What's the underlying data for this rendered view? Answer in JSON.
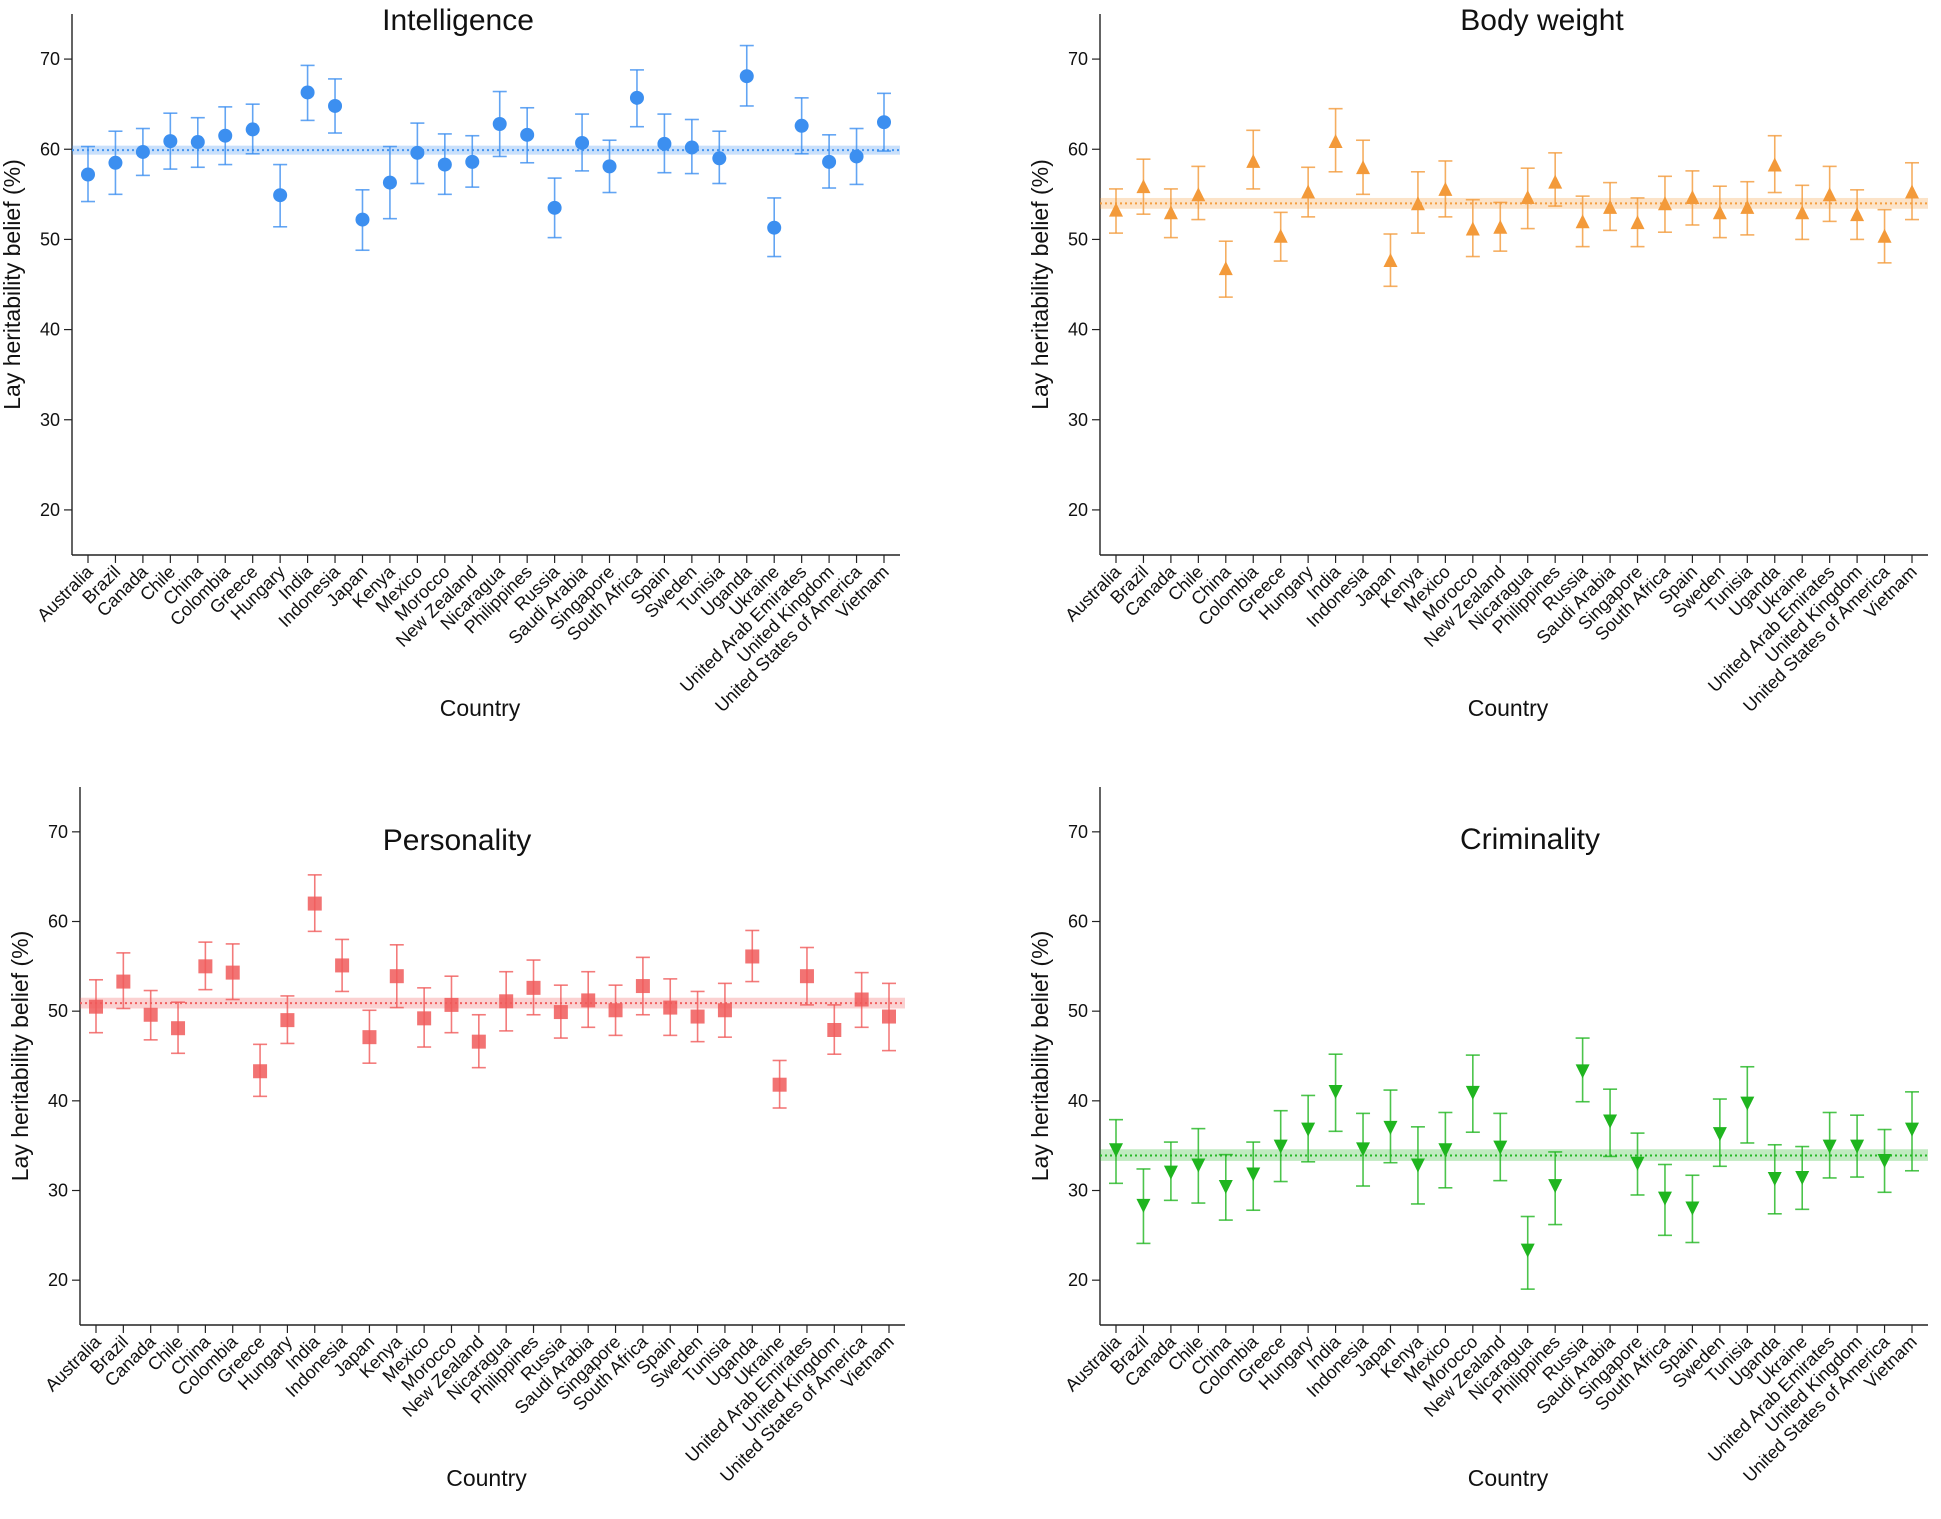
{
  "chart_data": [
    {
      "type": "scatter",
      "title": "Intelligence",
      "xlabel": "Country",
      "ylabel": "Lay heritability belief (%)",
      "ylim": [
        15,
        75
      ],
      "yticks": [
        "20",
        "30",
        "40",
        "50",
        "60",
        "70"
      ],
      "color": "#3c8ff0",
      "marker": "circle",
      "reference": {
        "mean": 59.9,
        "lower": 59.4,
        "upper": 60.4
      },
      "categories": [
        "Australia",
        "Brazil",
        "Canada",
        "Chile",
        "China",
        "Colombia",
        "Greece",
        "Hungary",
        "India",
        "Indonesia",
        "Japan",
        "Kenya",
        "Mexico",
        "Morocco",
        "New Zealand",
        "Nicaragua",
        "Philippines",
        "Russia",
        "Saudi Arabia",
        "Singapore",
        "South Africa",
        "Spain",
        "Sweden",
        "Tunisia",
        "Uganda",
        "Ukraine",
        "United Arab Emirates",
        "United Kingdom",
        "United States of America",
        "Vietnam"
      ],
      "series": [
        {
          "values": [
            57.2,
            58.5,
            59.7,
            60.9,
            60.8,
            61.5,
            62.2,
            54.9,
            66.3,
            64.8,
            52.2,
            56.3,
            59.6,
            58.3,
            58.6,
            62.8,
            61.6,
            53.5,
            60.7,
            58.1,
            65.7,
            60.6,
            60.2,
            59.0,
            68.1,
            51.3,
            62.6,
            58.6,
            59.2,
            63.0
          ],
          "lower": [
            54.2,
            55.0,
            57.1,
            57.8,
            58.0,
            58.3,
            59.5,
            51.4,
            63.2,
            61.8,
            48.8,
            52.3,
            56.2,
            55.0,
            55.8,
            59.2,
            58.5,
            50.2,
            57.6,
            55.2,
            62.5,
            57.4,
            57.3,
            56.2,
            64.8,
            48.1,
            59.5,
            55.7,
            56.1,
            59.8
          ],
          "upper": [
            60.3,
            62.0,
            62.3,
            64.0,
            63.5,
            64.7,
            65.0,
            58.3,
            69.3,
            67.8,
            55.5,
            60.3,
            62.9,
            61.7,
            61.5,
            66.4,
            64.6,
            56.8,
            63.9,
            61.0,
            68.8,
            63.9,
            63.3,
            62.0,
            71.5,
            54.6,
            65.7,
            61.6,
            62.3,
            66.2
          ]
        }
      ]
    },
    {
      "type": "scatter",
      "title": "Body weight",
      "xlabel": "Country",
      "ylabel": "Lay heritability belief (%)",
      "ylim": [
        15,
        75
      ],
      "yticks": [
        "20",
        "30",
        "40",
        "50",
        "60",
        "70"
      ],
      "color": "#f39a3a",
      "marker": "triangle-up",
      "reference": {
        "mean": 54.0,
        "lower": 53.4,
        "upper": 54.6
      },
      "categories": [
        "Australia",
        "Brazil",
        "Canada",
        "Chile",
        "China",
        "Colombia",
        "Greece",
        "Hungary",
        "India",
        "Indonesia",
        "Japan",
        "Kenya",
        "Mexico",
        "Morocco",
        "New Zealand",
        "Nicaragua",
        "Philippines",
        "Russia",
        "Saudi Arabia",
        "Singapore",
        "South Africa",
        "Spain",
        "Sweden",
        "Tunisia",
        "Uganda",
        "Ukraine",
        "United Arab Emirates",
        "United Kingdom",
        "United States of America",
        "Vietnam"
      ],
      "series": [
        {
          "values": [
            53.2,
            55.8,
            52.9,
            54.9,
            46.7,
            58.6,
            50.3,
            55.2,
            60.8,
            57.9,
            47.6,
            53.9,
            55.5,
            51.1,
            51.3,
            54.6,
            56.3,
            51.9,
            53.5,
            51.8,
            53.9,
            54.6,
            52.9,
            53.5,
            58.2,
            52.9,
            54.9,
            52.7,
            50.3,
            55.2
          ],
          "lower": [
            50.7,
            52.8,
            50.2,
            52.2,
            43.6,
            55.6,
            47.6,
            52.5,
            57.5,
            55.0,
            44.8,
            50.7,
            52.5,
            48.1,
            48.7,
            51.2,
            53.7,
            49.2,
            51.0,
            49.2,
            50.8,
            51.6,
            50.2,
            50.5,
            55.2,
            50.0,
            52.0,
            50.0,
            47.4,
            52.2
          ],
          "upper": [
            55.6,
            58.9,
            55.6,
            58.1,
            49.8,
            62.1,
            53.0,
            58.0,
            64.5,
            61.0,
            50.6,
            57.5,
            58.7,
            54.4,
            54.1,
            57.9,
            59.6,
            54.8,
            56.3,
            54.6,
            57.0,
            57.6,
            55.9,
            56.4,
            61.5,
            56.0,
            58.1,
            55.5,
            53.3,
            58.5
          ]
        }
      ]
    },
    {
      "type": "scatter",
      "title": "Personality",
      "xlabel": "Country",
      "ylabel": "Lay heritability belief (%)",
      "ylim": [
        15,
        75
      ],
      "yticks": [
        "20",
        "30",
        "40",
        "50",
        "60",
        "70"
      ],
      "color": "#f05a5a",
      "marker": "square",
      "reference": {
        "mean": 50.9,
        "lower": 50.3,
        "upper": 51.5
      },
      "categories": [
        "Australia",
        "Brazil",
        "Canada",
        "Chile",
        "China",
        "Colombia",
        "Greece",
        "Hungary",
        "India",
        "Indonesia",
        "Japan",
        "Kenya",
        "Mexico",
        "Morocco",
        "New Zealand",
        "Nicaragua",
        "Philippines",
        "Russia",
        "Saudi Arabia",
        "Singapore",
        "South Africa",
        "Spain",
        "Sweden",
        "Tunisia",
        "Uganda",
        "Ukraine",
        "United Arab Emirates",
        "United Kingdom",
        "United States of America",
        "Vietnam"
      ],
      "series": [
        {
          "values": [
            50.5,
            53.3,
            49.6,
            48.1,
            55.0,
            54.3,
            43.3,
            49.0,
            62.0,
            55.1,
            47.1,
            53.9,
            49.2,
            50.7,
            46.6,
            51.1,
            52.6,
            49.9,
            51.2,
            50.1,
            52.8,
            50.4,
            49.4,
            50.1,
            56.1,
            41.8,
            53.9,
            47.9,
            51.3,
            49.4
          ],
          "lower": [
            47.6,
            50.3,
            46.8,
            45.3,
            52.4,
            51.3,
            40.5,
            46.4,
            58.9,
            52.2,
            44.2,
            50.4,
            46.0,
            47.6,
            43.7,
            47.8,
            49.6,
            47.0,
            48.2,
            47.3,
            49.6,
            47.3,
            46.6,
            47.1,
            53.3,
            39.2,
            50.7,
            45.2,
            48.2,
            45.6
          ],
          "upper": [
            53.5,
            56.5,
            52.3,
            51.0,
            57.7,
            57.5,
            46.3,
            51.7,
            65.2,
            58.0,
            50.1,
            57.4,
            52.6,
            53.9,
            49.6,
            54.4,
            55.7,
            52.9,
            54.4,
            52.9,
            56.0,
            53.6,
            52.2,
            53.1,
            59.0,
            44.5,
            57.1,
            50.7,
            54.3,
            53.1
          ]
        }
      ]
    },
    {
      "type": "scatter",
      "title": "Criminality",
      "xlabel": "Country",
      "ylabel": "Lay heritability belief (%)",
      "ylim": [
        15,
        75
      ],
      "yticks": [
        "20",
        "30",
        "40",
        "50",
        "60",
        "70"
      ],
      "color": "#1fb51f",
      "marker": "triangle-down",
      "reference": {
        "mean": 33.9,
        "lower": 33.3,
        "upper": 34.6
      },
      "categories": [
        "Australia",
        "Brazil",
        "Canada",
        "Chile",
        "China",
        "Colombia",
        "Greece",
        "Hungary",
        "India",
        "Indonesia",
        "Japan",
        "Kenya",
        "Mexico",
        "Morocco",
        "New Zealand",
        "Nicaragua",
        "Philippines",
        "Russia",
        "Saudi Arabia",
        "Singapore",
        "South Africa",
        "Spain",
        "Sweden",
        "Tunisia",
        "Uganda",
        "Ukraine",
        "United Arab Emirates",
        "United Kingdom",
        "United States of America",
        "Vietnam"
      ],
      "series": [
        {
          "values": [
            34.6,
            28.4,
            32.1,
            32.9,
            30.5,
            31.9,
            35.0,
            36.9,
            41.1,
            34.7,
            37.1,
            32.9,
            34.6,
            41.0,
            34.9,
            23.4,
            30.6,
            43.4,
            37.8,
            33.1,
            29.2,
            28.1,
            36.4,
            39.8,
            31.4,
            31.5,
            35.0,
            35.0,
            33.4,
            36.9
          ],
          "lower": [
            30.8,
            24.1,
            28.9,
            28.6,
            26.7,
            27.8,
            31.0,
            33.2,
            36.6,
            30.5,
            33.1,
            28.5,
            30.3,
            36.5,
            31.1,
            19.0,
            26.2,
            39.9,
            33.8,
            29.5,
            25.0,
            24.2,
            32.7,
            35.3,
            27.4,
            27.9,
            31.4,
            31.5,
            29.8,
            32.2
          ],
          "upper": [
            37.9,
            32.4,
            35.4,
            36.9,
            34.0,
            35.4,
            38.9,
            40.6,
            45.2,
            38.6,
            41.2,
            37.1,
            38.7,
            45.1,
            38.6,
            27.1,
            34.3,
            47.0,
            41.3,
            36.4,
            32.9,
            31.7,
            40.2,
            43.8,
            35.1,
            34.9,
            38.7,
            38.4,
            36.8,
            41.0
          ]
        }
      ]
    }
  ]
}
